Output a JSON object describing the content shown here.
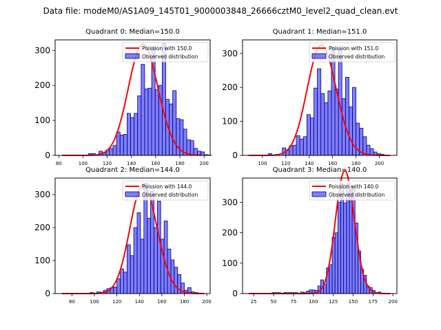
{
  "chart_data": {
    "suptitle": "Data file: modeM0/AS1A09_145T01_9000003848_26666cztM0_level2_quad_clean.evt",
    "bar_color": "#0000ff",
    "bar_alpha": 0.5,
    "bar_edge": "#000080",
    "curve_color": "#ff0000",
    "panels": [
      {
        "type": "bar",
        "title": "Quadrant 0: Median=150.0",
        "legend": [
          "Poission with 150.0",
          "Observed distribution"
        ],
        "legend_position": "top-right",
        "xlim": [
          77,
          205
        ],
        "ylim": [
          0,
          330
        ],
        "xticks": [
          80,
          100,
          120,
          140,
          160,
          180,
          200
        ],
        "yticks": [
          0,
          100,
          200,
          300
        ],
        "bin_width": 2.9,
        "bins_start": 104.5,
        "values": [
          5,
          5,
          0,
          12,
          8,
          15,
          20,
          28,
          67,
          58,
          60,
          120,
          108,
          120,
          170,
          260,
          190,
          192,
          310,
          188,
          200,
          320,
          160,
          147,
          185,
          105,
          102,
          75,
          45,
          42,
          20,
          12,
          10,
          2,
          1
        ],
        "poisson_mean": 150.0,
        "curve_x": [
          83,
          198
        ]
      },
      {
        "type": "bar",
        "title": "Quadrant 1: Median=151.0",
        "legend": [
          "Poission with 151.0",
          "Observed distribution"
        ],
        "legend_position": "top-right",
        "xlim": [
          83,
          215
        ],
        "ylim": [
          0,
          340
        ],
        "xticks": [
          100,
          120,
          140,
          160,
          180,
          200
        ],
        "yticks": [
          0,
          100,
          200,
          300
        ],
        "bin_width": 3.0,
        "bins_start": 105,
        "values": [
          5,
          0,
          3,
          0,
          22,
          15,
          28,
          30,
          58,
          48,
          55,
          120,
          110,
          198,
          255,
          182,
          155,
          190,
          318,
          195,
          315,
          167,
          230,
          143,
          200,
          95,
          80,
          55,
          30,
          20,
          10,
          5,
          3
        ],
        "poisson_mean": 151.0,
        "curve_x": [
          88,
          209
        ]
      },
      {
        "type": "bar",
        "title": "Quadrant 2: Median=144.0",
        "legend": [
          "Poission with 144.0",
          "Observed distribution"
        ],
        "legend_position": "top-right",
        "xlim": [
          65,
          203
        ],
        "ylim": [
          0,
          350
        ],
        "xticks": [
          80,
          100,
          120,
          140,
          160,
          180,
          200
        ],
        "yticks": [
          0,
          100,
          200,
          300
        ],
        "bin_width": 3.0,
        "bins_start": 96,
        "values": [
          3,
          0,
          5,
          4,
          10,
          15,
          18,
          20,
          45,
          75,
          65,
          148,
          115,
          200,
          245,
          165,
          335,
          228,
          310,
          200,
          280,
          165,
          220,
          135,
          102,
          80,
          58,
          32,
          10,
          18,
          5,
          3
        ],
        "poisson_mean": 144.0,
        "curve_x": [
          71,
          198
        ]
      },
      {
        "type": "bar",
        "title": "Quadrant 3: Median=140.0",
        "legend": [
          "Poission with 140.0",
          "Observed distribution"
        ],
        "legend_position": "top-right",
        "xlim": [
          11,
          205
        ],
        "ylim": [
          0,
          380
        ],
        "xticks": [
          25,
          50,
          75,
          100,
          125,
          150,
          175,
          200
        ],
        "yticks": [
          0,
          100,
          200,
          300
        ],
        "bin_width": 3.6,
        "bins_start": 48,
        "values": [
          3,
          3,
          3,
          0,
          3,
          3,
          3,
          3,
          3,
          0,
          5,
          3,
          8,
          12,
          12,
          10,
          25,
          45,
          30,
          85,
          95,
          185,
          200,
          300,
          360,
          298,
          360,
          355,
          345,
          232,
          140,
          80,
          60,
          25,
          20,
          10,
          3,
          5
        ],
        "poisson_mean": 140.0,
        "curve_x": [
          19,
          197
        ]
      }
    ]
  }
}
